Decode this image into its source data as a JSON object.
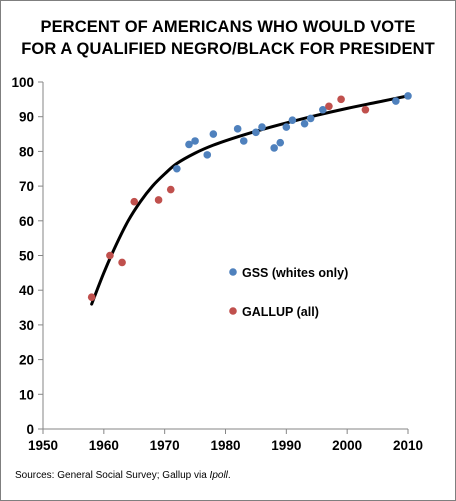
{
  "chart_data": {
    "type": "scatter",
    "title_line1": "PERCENT  OF AMERICANS  WHO WOULD VOTE",
    "title_line2": "FOR A QUALIFIED NEGRO/BLACK FOR PRESIDENT",
    "xlabel": "",
    "ylabel": "",
    "xlim": [
      1950,
      2010
    ],
    "ylim": [
      0,
      100
    ],
    "x_ticks": [
      1950,
      1960,
      1970,
      1980,
      1990,
      2000,
      2010
    ],
    "y_ticks": [
      0,
      10,
      20,
      30,
      40,
      50,
      60,
      70,
      80,
      90,
      100
    ],
    "grid": false,
    "legend_position": "right-middle",
    "series": [
      {
        "name": "GSS (whites  only)",
        "color": "#4f81bd",
        "points": [
          [
            1972,
            75
          ],
          [
            1974,
            82
          ],
          [
            1975,
            83
          ],
          [
            1977,
            79
          ],
          [
            1978,
            85
          ],
          [
            1982,
            86.5
          ],
          [
            1983,
            83
          ],
          [
            1985,
            85.5
          ],
          [
            1986,
            87
          ],
          [
            1988,
            81
          ],
          [
            1989,
            82.5
          ],
          [
            1990,
            87
          ],
          [
            1991,
            89
          ],
          [
            1993,
            88
          ],
          [
            1994,
            89.5
          ],
          [
            1996,
            92
          ],
          [
            2008,
            94.5
          ],
          [
            2010,
            96
          ]
        ]
      },
      {
        "name": "GALLUP (all)",
        "color": "#c0504d",
        "points": [
          [
            1958,
            38
          ],
          [
            1961,
            50
          ],
          [
            1963,
            48
          ],
          [
            1965,
            65.5
          ],
          [
            1969,
            66
          ],
          [
            1971,
            69
          ],
          [
            1997,
            93
          ],
          [
            1999,
            95
          ],
          [
            2003,
            92
          ]
        ]
      }
    ],
    "trendline": {
      "color": "#000000",
      "x_start": 1958,
      "x_end": 2010,
      "curve": [
        [
          1958,
          36
        ],
        [
          1960,
          45
        ],
        [
          1962,
          53
        ],
        [
          1964,
          60
        ],
        [
          1966,
          65.5
        ],
        [
          1968,
          70
        ],
        [
          1970,
          73.5
        ],
        [
          1972,
          76.5
        ],
        [
          1975,
          79.5
        ],
        [
          1978,
          81.8
        ],
        [
          1982,
          84.2
        ],
        [
          1986,
          86.3
        ],
        [
          1990,
          88.2
        ],
        [
          1995,
          90.4
        ],
        [
          2000,
          92.4
        ],
        [
          2005,
          94.2
        ],
        [
          2010,
          96
        ]
      ]
    }
  },
  "source_prefix": "Sources: General Social Survey; Gallup via ",
  "source_italic": "Ipoll",
  "source_suffix": "."
}
